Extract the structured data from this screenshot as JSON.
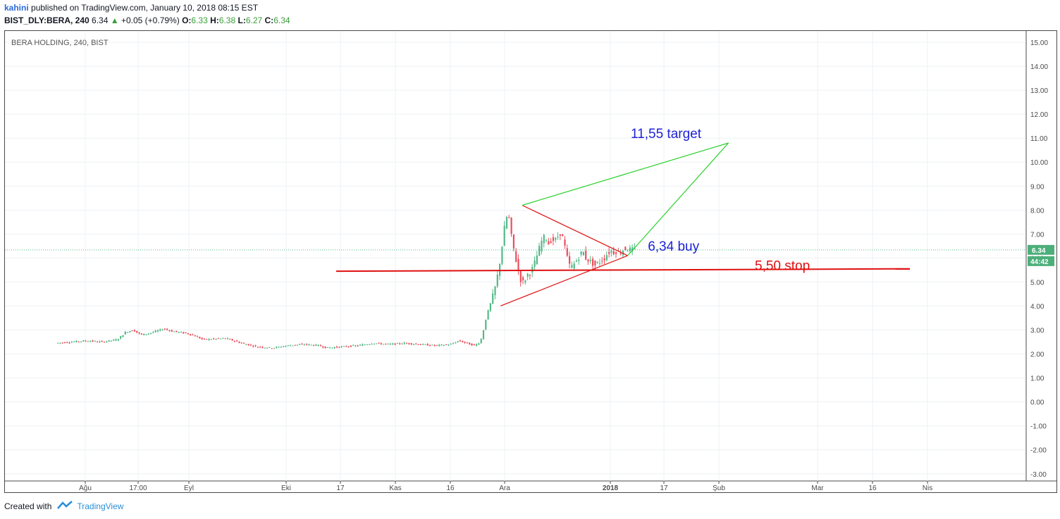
{
  "header": {
    "author": "kahini",
    "published_text": "published on TradingView.com, January 10, 2018 08:15 EST",
    "symbol_line": "BIST_DLY:BERA, 240",
    "last": "6.34",
    "change": "+0.05 (+0.79%)",
    "open_label": "O:",
    "open": "6.33",
    "high_label": "H:",
    "high": "6.38",
    "low_label": "L:",
    "low": "6.27",
    "close_label": "C:",
    "close": "6.34"
  },
  "footer": {
    "created_with": "Created with",
    "brand": "TradingView"
  },
  "colors": {
    "up": "#53b987",
    "down": "#eb4d5c",
    "grid": "#eef1f4",
    "price_tag": "#4caf7a"
  },
  "chart_data": {
    "type": "candlestick",
    "title": "BERA HOLDING, 240, BIST",
    "ylim": [
      -3.3,
      15.5
    ],
    "y_ticks": [
      "15.00",
      "14.00",
      "13.00",
      "12.00",
      "11.00",
      "10.00",
      "9.00",
      "8.00",
      "7.00",
      "6.00",
      "5.00",
      "4.00",
      "3.00",
      "2.00",
      "1.00",
      "0.00",
      "-1.00",
      "-2.00",
      "-3.00"
    ],
    "x_ticks": [
      "Ağu",
      "17:00",
      "Eyl",
      "Eki",
      "17",
      "Kas",
      "16",
      "Ara",
      "2018",
      "17",
      "Şub",
      "Mar",
      "16",
      "Nis"
    ],
    "last_price_label": "6.34",
    "countdown_label": "44:42",
    "series_path": [
      [
        0,
        2.45
      ],
      [
        20,
        2.5
      ],
      [
        40,
        2.55
      ],
      [
        60,
        2.5
      ],
      [
        80,
        2.6
      ],
      [
        90,
        2.9
      ],
      [
        100,
        3.0
      ],
      [
        110,
        2.8
      ],
      [
        120,
        2.85
      ],
      [
        140,
        3.05
      ],
      [
        150,
        2.95
      ],
      [
        170,
        2.85
      ],
      [
        180,
        2.75
      ],
      [
        190,
        2.6
      ],
      [
        220,
        2.65
      ],
      [
        240,
        2.45
      ],
      [
        260,
        2.3
      ],
      [
        280,
        2.25
      ],
      [
        300,
        2.35
      ],
      [
        320,
        2.4
      ],
      [
        340,
        2.35
      ],
      [
        350,
        2.25
      ],
      [
        370,
        2.3
      ],
      [
        390,
        2.35
      ],
      [
        410,
        2.45
      ],
      [
        430,
        2.4
      ],
      [
        450,
        2.45
      ],
      [
        470,
        2.4
      ],
      [
        490,
        2.35
      ],
      [
        510,
        2.4
      ],
      [
        520,
        2.55
      ],
      [
        530,
        2.45
      ],
      [
        540,
        2.35
      ],
      [
        548,
        2.5
      ],
      [
        552,
        3.0
      ],
      [
        556,
        3.6
      ],
      [
        560,
        4.0
      ],
      [
        564,
        4.4
      ],
      [
        568,
        4.9
      ],
      [
        572,
        5.6
      ],
      [
        576,
        6.5
      ],
      [
        580,
        7.5
      ],
      [
        584,
        7.9
      ],
      [
        588,
        6.9
      ],
      [
        592,
        6.2
      ],
      [
        596,
        5.6
      ],
      [
        600,
        5.1
      ],
      [
        604,
        4.95
      ],
      [
        608,
        5.3
      ],
      [
        612,
        5.4
      ],
      [
        616,
        5.6
      ],
      [
        620,
        6.0
      ],
      [
        624,
        6.4
      ],
      [
        628,
        6.8
      ],
      [
        632,
        6.9
      ],
      [
        636,
        6.6
      ],
      [
        640,
        6.8
      ],
      [
        644,
        6.7
      ],
      [
        648,
        6.9
      ],
      [
        652,
        7.1
      ],
      [
        656,
        6.6
      ],
      [
        660,
        6.0
      ],
      [
        664,
        5.6
      ],
      [
        668,
        5.7
      ],
      [
        672,
        5.9
      ],
      [
        676,
        6.1
      ],
      [
        680,
        6.3
      ],
      [
        684,
        6.0
      ],
      [
        688,
        5.9
      ],
      [
        692,
        5.8
      ],
      [
        696,
        5.7
      ],
      [
        700,
        5.8
      ],
      [
        704,
        5.9
      ],
      [
        708,
        6.0
      ],
      [
        712,
        6.2
      ],
      [
        716,
        6.3
      ],
      [
        720,
        6.25
      ],
      [
        724,
        6.3
      ],
      [
        728,
        6.2
      ],
      [
        732,
        6.35
      ],
      [
        736,
        6.4
      ],
      [
        740,
        6.35
      ],
      [
        744,
        6.34
      ]
    ],
    "annotations": [
      {
        "text": "11,55 target",
        "color": "#1e22d6",
        "price": 11.0,
        "day": 740
      },
      {
        "text": "6,34 buy",
        "color": "#1e22d6",
        "price": 6.3,
        "day": 762
      },
      {
        "text": "5,50 stop",
        "color": "#e01010",
        "price": 5.5,
        "day": 900
      }
    ],
    "trend_lines": [
      {
        "color": "#e01010",
        "from": [
          600,
          8.2
        ],
        "to": [
          736,
          6.1
        ]
      },
      {
        "color": "#e01010",
        "from": [
          572,
          4.0
        ],
        "to": [
          736,
          6.1
        ]
      },
      {
        "color": "#e01010",
        "from": [
          360,
          5.45
        ],
        "to": [
          1100,
          5.55
        ]
      },
      {
        "color": "#2ad12a",
        "from": [
          600,
          8.2
        ],
        "to": [
          866,
          10.8
        ]
      },
      {
        "color": "#2ad12a",
        "from": [
          736,
          6.1
        ],
        "to": [
          866,
          10.8
        ]
      }
    ]
  }
}
